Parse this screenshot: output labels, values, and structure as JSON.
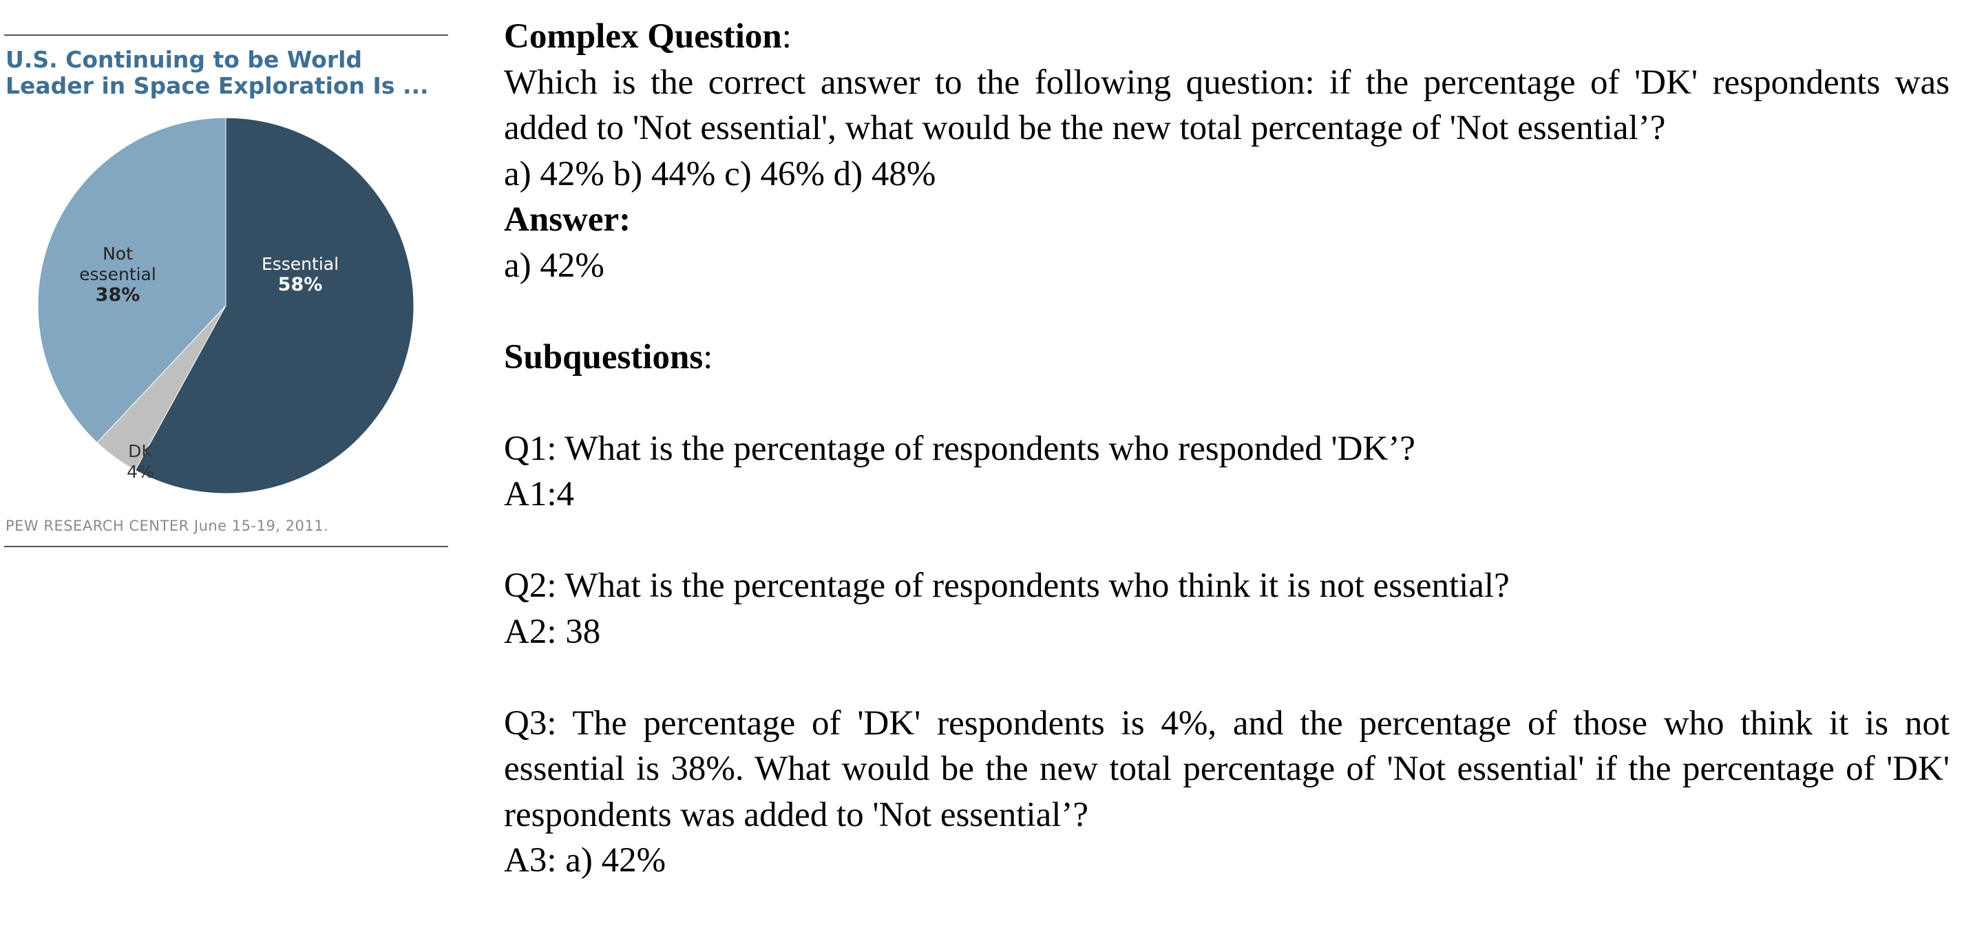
{
  "chart_data": {
    "type": "pie",
    "title_lines": [
      "U.S. Continuing to be World",
      "Leader in Space Exploration Is ..."
    ],
    "source": "PEW RESEARCH  CENTER June 15-19, 2011.",
    "slices": [
      {
        "label_lines": [
          "Essential"
        ],
        "value": 58,
        "value_text": "58%",
        "color": "#344f63",
        "label_color": "#ffffff"
      },
      {
        "label_lines": [
          "DK"
        ],
        "value": 4,
        "value_text": "4%",
        "color": "#bfbfbf",
        "label_color": "#333333"
      },
      {
        "label_lines": [
          "Not",
          "essential"
        ],
        "value": 38,
        "value_text": "38%",
        "color": "#83a6c1",
        "label_color": "#222222"
      }
    ]
  },
  "complex": {
    "heading": "Complex Question",
    "heading_suffix": ":",
    "question": "Which is the correct answer to the following question: if the percentage of 'DK' respondents was added to 'Not essential', what would be the new total percentage of 'Not essential’?",
    "options": "a) 42% b) 44% c) 46% d) 48%",
    "answer_heading": "Answer:",
    "answer": "a) 42%"
  },
  "subquestions": {
    "heading": "Subquestions",
    "heading_suffix": ":",
    "items": [
      {
        "q": "Q1: What is the percentage of respondents who responded 'DK’?",
        "a": "A1:4"
      },
      {
        "q": "Q2: What is the percentage of respondents who think it is not essential?",
        "a": "A2: 38"
      },
      {
        "q": "Q3: The percentage of 'DK' respondents is 4%, and the percentage of those who think it is not essential is 38%. What would be the new total percentage of 'Not essential' if the percentage of 'DK' respondents was added to 'Not essential’?",
        "a": "A3: a) 42%"
      }
    ]
  }
}
